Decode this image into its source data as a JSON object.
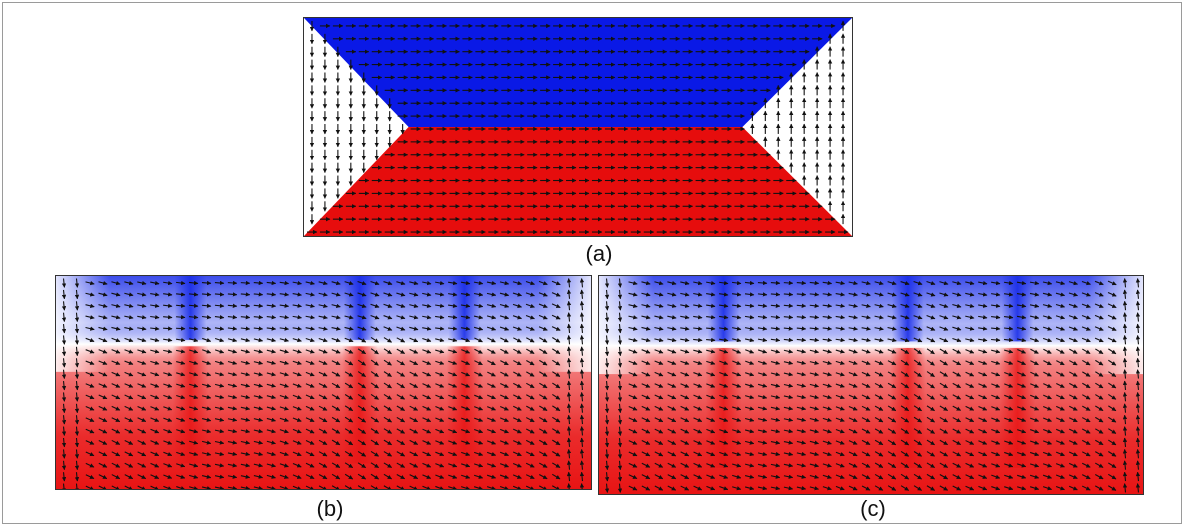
{
  "figure": {
    "panels": [
      {
        "id": "a",
        "label": "(a)",
        "state": "sharp-domains",
        "colors": {
          "up": "#0a19e6",
          "down": "#e60d0d",
          "closure": "#ffffff"
        }
      },
      {
        "id": "b",
        "label": "(b)",
        "state": "relaxed-domains",
        "colors": {
          "up": "#1a2ee8",
          "down": "#e81414",
          "closure": "#ffffff"
        }
      },
      {
        "id": "c",
        "label": "(c)",
        "state": "relaxed-domains",
        "colors": {
          "up": "#1a2ee8",
          "down": "#e81414",
          "closure": "#ffffff"
        }
      }
    ],
    "arrow_color": "#111111"
  }
}
